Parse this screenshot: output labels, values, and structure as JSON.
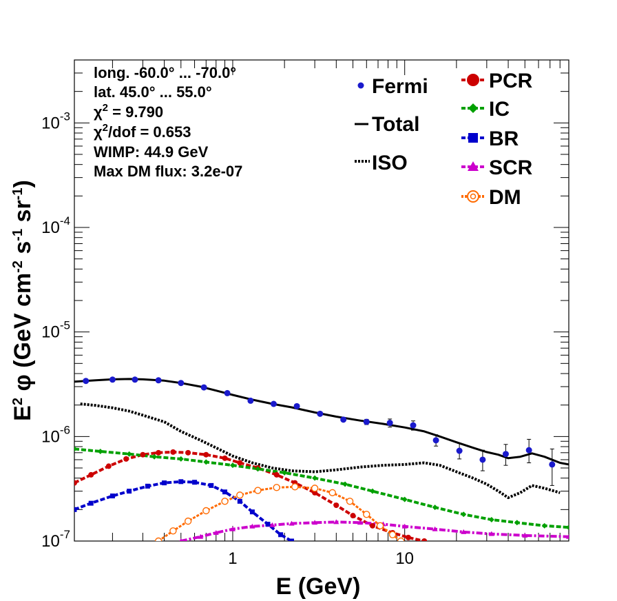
{
  "chart_data": {
    "type": "line",
    "xlabel": "E (GeV)",
    "ylabel": "E<sup>2</sup> φ (GeV cm<sup>-2</sup> s<sup>-1</sup> sr<sup>-1</sup>)",
    "xscale": "log",
    "yscale": "log",
    "xlim": [
      0.12,
      90
    ],
    "ylim": [
      1e-07,
      0.004
    ],
    "x_ticks": [
      {
        "value": 1,
        "label": "1"
      },
      {
        "value": 10,
        "label": "10"
      }
    ],
    "y_ticks": [
      {
        "value": 1e-07,
        "base": "10",
        "exp": "-7"
      },
      {
        "value": 1e-06,
        "base": "10",
        "exp": "-6"
      },
      {
        "value": 1e-05,
        "base": "10",
        "exp": "-5"
      },
      {
        "value": 0.0001,
        "base": "10",
        "exp": "-4"
      },
      {
        "value": 0.001,
        "base": "10",
        "exp": "-3"
      }
    ],
    "info": {
      "line1": "long. -60.0° ... -70.0°",
      "line2": "lat. 45.0° ... 55.0°",
      "chi2_label": "χ",
      "chi2_sup": "2",
      "chi2_rest": " = 9.790",
      "chi2dof_rest": "/dof = 0.653",
      "wimp": "WIMP: 44.9 GeV",
      "maxdm": "Max DM flux: 3.2e-07"
    },
    "legend": {
      "fermi": "Fermi",
      "total": "Total",
      "iso": "ISO",
      "pcr": "PCR",
      "ic": "IC",
      "br": "BR",
      "scr": "SCR",
      "dm": "DM"
    },
    "colors": {
      "fermi": "#1a1acc",
      "total": "#000000",
      "iso": "#000000",
      "pcr": "#cc0000",
      "ic": "#00a000",
      "br": "#0000cc",
      "scr": "#cc00cc",
      "dm": "#ff6a00"
    },
    "fermi": {
      "x": [
        0.14,
        0.2,
        0.27,
        0.37,
        0.5,
        0.68,
        0.93,
        1.27,
        1.73,
        2.36,
        3.22,
        4.4,
        6.0,
        8.2,
        11.2,
        15.2,
        20.8,
        28.4,
        38.7,
        52.8,
        72
      ],
      "y": [
        3.4e-06,
        3.5e-06,
        3.5e-06,
        3.45e-06,
        3.25e-06,
        2.95e-06,
        2.6e-06,
        2.2e-06,
        2.05e-06,
        1.95e-06,
        1.65e-06,
        1.45e-06,
        1.38e-06,
        1.35e-06,
        1.28e-06,
        9.2e-07,
        7.3e-07,
        6e-07,
        6.8e-07,
        7.4e-07,
        5.4e-07
      ],
      "yerr_lo": [
        0,
        0,
        0,
        0,
        0,
        0,
        0,
        0,
        0,
        0,
        0,
        0,
        8e-08,
        1.2e-07,
        1.3e-07,
        1.1e-07,
        1.2e-07,
        1.3e-07,
        1.5e-07,
        1.8e-07,
        2e-07
      ],
      "yerr_hi": [
        0,
        0,
        0,
        0,
        0,
        0,
        0,
        0,
        0,
        0,
        0,
        0,
        8e-08,
        1.2e-07,
        1.3e-07,
        1.2e-07,
        1.3e-07,
        1.4e-07,
        1.6e-07,
        2e-07,
        2.2e-07
      ]
    },
    "series": [
      {
        "name": "Total",
        "key": "total",
        "x": [
          0.12,
          0.16,
          0.2,
          0.25,
          0.3,
          0.4,
          0.5,
          0.65,
          0.8,
          1.0,
          1.3,
          1.7,
          2.2,
          3.0,
          4.0,
          5.5,
          7.5,
          10,
          13,
          16,
          20,
          25,
          30,
          35,
          40,
          47,
          55,
          65,
          80,
          90
        ],
        "y": [
          3.35e-06,
          3.45e-06,
          3.52e-06,
          3.55e-06,
          3.52e-06,
          3.42e-06,
          3.25e-06,
          3e-06,
          2.75e-06,
          2.5e-06,
          2.25e-06,
          2.05e-06,
          1.9e-06,
          1.7e-06,
          1.55e-06,
          1.42e-06,
          1.32e-06,
          1.22e-06,
          1.12e-06,
          1e-06,
          8.8e-07,
          7.8e-07,
          7.1e-07,
          6.7e-07,
          6.2e-07,
          6.4e-07,
          6.9e-07,
          6.4e-07,
          5.6e-07,
          5.4e-07
        ]
      },
      {
        "name": "ISO",
        "key": "iso",
        "x": [
          0.13,
          0.16,
          0.2,
          0.25,
          0.3,
          0.4,
          0.5,
          0.65,
          0.8,
          1.0,
          1.3,
          1.7,
          2.2,
          3.0,
          4.0,
          5.5,
          7.5,
          10,
          13,
          16,
          20,
          25,
          30,
          35,
          40,
          47,
          55,
          65,
          80
        ],
        "y": [
          2.05e-06,
          1.98e-06,
          1.88e-06,
          1.75e-06,
          1.6e-06,
          1.38e-06,
          1.12e-06,
          9.2e-07,
          7.8e-07,
          6.5e-07,
          5.6e-07,
          5e-07,
          4.7e-07,
          4.6e-07,
          4.8e-07,
          5.1e-07,
          5.3e-07,
          5.4e-07,
          5.6e-07,
          5.3e-07,
          4.6e-07,
          4e-07,
          3.5e-07,
          3e-07,
          2.6e-07,
          2.9e-07,
          3.4e-07,
          3.2e-07,
          2.9e-07
        ]
      },
      {
        "name": "PCR",
        "key": "pcr",
        "x": [
          0.12,
          0.15,
          0.19,
          0.24,
          0.3,
          0.37,
          0.45,
          0.55,
          0.7,
          0.9,
          1.1,
          1.4,
          1.8,
          2.3,
          3.0,
          4.0,
          5.0,
          6.5,
          8.5,
          10.5,
          13
        ],
        "y": [
          3.6e-07,
          4.3e-07,
          5.2e-07,
          6.1e-07,
          6.7e-07,
          7e-07,
          7.1e-07,
          7e-07,
          6.7e-07,
          6.2e-07,
          5.6e-07,
          5e-07,
          4.3e-07,
          3.6e-07,
          2.9e-07,
          2.2e-07,
          1.75e-07,
          1.4e-07,
          1.2e-07,
          1.08e-07,
          1e-07
        ]
      },
      {
        "name": "IC",
        "key": "ic",
        "x": [
          0.12,
          0.17,
          0.25,
          0.35,
          0.5,
          0.7,
          1.0,
          1.4,
          2.0,
          3.0,
          4.5,
          6.5,
          10,
          15,
          22,
          32,
          45,
          65,
          90
        ],
        "y": [
          7.6e-07,
          7.2e-07,
          6.8e-07,
          6.4e-07,
          6.1e-07,
          5.7e-07,
          5.3e-07,
          4.9e-07,
          4.5e-07,
          4e-07,
          3.5e-07,
          3e-07,
          2.5e-07,
          2.1e-07,
          1.8e-07,
          1.6e-07,
          1.5e-07,
          1.4e-07,
          1.35e-07
        ]
      },
      {
        "name": "BR",
        "key": "br",
        "x": [
          0.12,
          0.15,
          0.2,
          0.25,
          0.32,
          0.4,
          0.5,
          0.6,
          0.75,
          0.9,
          1.1,
          1.3,
          1.6,
          1.9,
          2.2
        ],
        "y": [
          2e-07,
          2.3e-07,
          2.7e-07,
          3e-07,
          3.35e-07,
          3.6e-07,
          3.7e-07,
          3.65e-07,
          3.4e-07,
          2.95e-07,
          2.4e-07,
          1.9e-07,
          1.45e-07,
          1.15e-07,
          1e-07
        ]
      },
      {
        "name": "SCR",
        "key": "scr",
        "x": [
          0.5,
          0.65,
          0.8,
          1.0,
          1.3,
          1.7,
          2.2,
          3.0,
          4.0,
          5.5,
          7.5,
          10,
          15,
          22,
          32,
          50,
          90
        ],
        "y": [
          1e-07,
          1.1e-07,
          1.2e-07,
          1.3e-07,
          1.38e-07,
          1.42e-07,
          1.47e-07,
          1.5e-07,
          1.52e-07,
          1.5e-07,
          1.45e-07,
          1.38e-07,
          1.3e-07,
          1.22e-07,
          1.17e-07,
          1.13e-07,
          1.1e-07
        ]
      },
      {
        "name": "DM",
        "key": "dm",
        "x": [
          0.37,
          0.45,
          0.55,
          0.7,
          0.9,
          1.1,
          1.4,
          1.8,
          2.3,
          3.0,
          3.8,
          4.8,
          6.0,
          7.2,
          8.5,
          9.5
        ],
        "y": [
          1e-07,
          1.25e-07,
          1.55e-07,
          1.95e-07,
          2.4e-07,
          2.75e-07,
          3.05e-07,
          3.25e-07,
          3.3e-07,
          3.2e-07,
          2.9e-07,
          2.4e-07,
          1.8e-07,
          1.4e-07,
          1.15e-07,
          1e-07
        ]
      }
    ]
  }
}
